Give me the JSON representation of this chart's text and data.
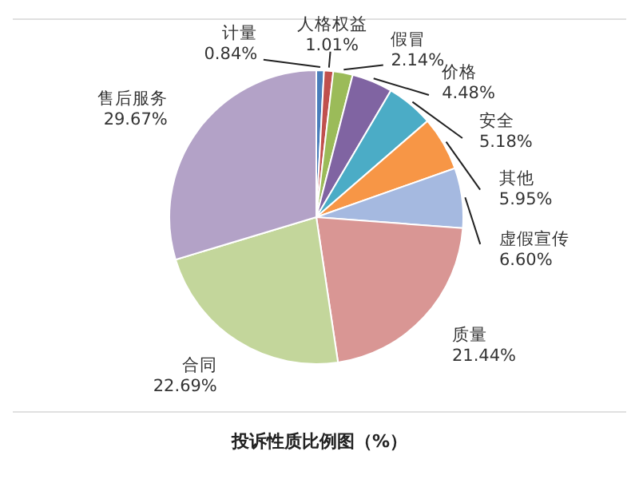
{
  "chart_data": {
    "type": "pie",
    "title": "投诉性质比例图（%）",
    "categories": [
      "计量",
      "人格权益",
      "假冒",
      "价格",
      "安全",
      "其他",
      "虚假宣传",
      "质量",
      "合同",
      "售后服务"
    ],
    "values": [
      0.84,
      1.01,
      2.14,
      4.48,
      5.18,
      5.95,
      6.6,
      21.44,
      22.69,
      29.67
    ],
    "value_labels": [
      "0.84%",
      "1.01%",
      "2.14%",
      "4.48%",
      "5.18%",
      "5.95%",
      "6.60%",
      "21.44%",
      "22.69%",
      "29.67%"
    ],
    "colors": [
      "#4a7ebb",
      "#c0504d",
      "#9bbb59",
      "#8064a2",
      "#4bacc6",
      "#f79646",
      "#a5b9e0",
      "#d99694",
      "#c3d69b",
      "#b3a2c7"
    ]
  }
}
